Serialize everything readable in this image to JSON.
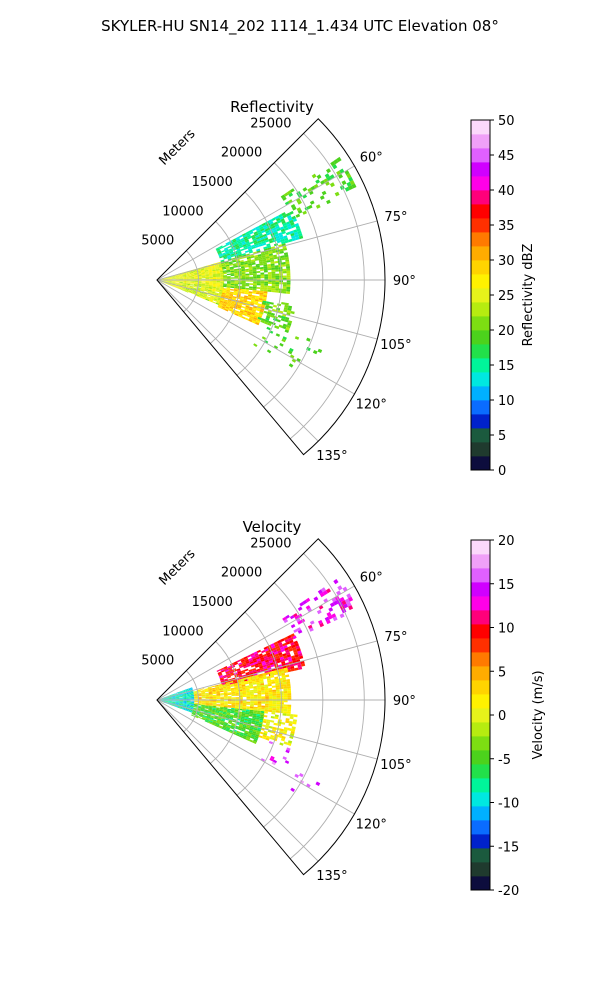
{
  "suptitle": "SKYLER-HU  SN14_202  1114_1.434 UTC Elevation 08°",
  "chart_data": [
    {
      "type": "heatmap",
      "title": "Reflectivity",
      "radial_label": "Meters",
      "r_ticks": [
        5000,
        10000,
        15000,
        20000,
        25000
      ],
      "r_range": [
        0,
        27500
      ],
      "theta_ticks": [
        60,
        75,
        90,
        105,
        120,
        135
      ],
      "theta_tick_labels": [
        "60°",
        "75°",
        "90°",
        "105°",
        "120°",
        "135°"
      ],
      "theta_range": [
        45,
        140
      ],
      "grid": true,
      "colorbar": {
        "label": "Reflectivity dBZ",
        "range": [
          0,
          50
        ],
        "ticks": [
          0,
          5,
          10,
          15,
          20,
          25,
          30,
          35,
          40,
          45,
          50
        ],
        "colors": [
          "#0d0d3d",
          "#1f3a2e",
          "#1b5a3e",
          "#0022cc",
          "#0a6cff",
          "#00b0ff",
          "#00e8e0",
          "#00f59a",
          "#22e04a",
          "#4cd21c",
          "#7dde12",
          "#b6ec10",
          "#e6f31a",
          "#fff200",
          "#ffd400",
          "#ffac00",
          "#ff7a00",
          "#ff3000",
          "#ff0000",
          "#ff007a",
          "#ff00e8",
          "#d000ff",
          "#e060ff",
          "#f0a0f8",
          "#fbd8fb"
        ]
      },
      "sectors": [
        {
          "az": [
            62,
            74
          ],
          "r": [
            8000,
            18000
          ],
          "value": 15,
          "density": 0.8
        },
        {
          "az": [
            56,
            66
          ],
          "r": [
            18000,
            26500
          ],
          "value": 19,
          "density": 0.32
        },
        {
          "az": [
            74,
            96
          ],
          "r": [
            0,
            8000
          ],
          "value": 25,
          "density": 0.97
        },
        {
          "az": [
            74,
            96
          ],
          "r": [
            8000,
            16000
          ],
          "value": 21,
          "density": 0.85
        },
        {
          "az": [
            96,
            112
          ],
          "r": [
            0,
            8000
          ],
          "value": 24,
          "density": 0.95
        },
        {
          "az": [
            96,
            114
          ],
          "r": [
            8000,
            13000
          ],
          "value": 29,
          "density": 0.9
        },
        {
          "az": [
            100,
            112
          ],
          "r": [
            13000,
            17000
          ],
          "value": 20,
          "density": 0.55
        },
        {
          "az": [
            110,
            124
          ],
          "r": [
            14000,
            22000
          ],
          "value": 19,
          "density": 0.1
        }
      ]
    },
    {
      "type": "heatmap",
      "title": "Velocity",
      "radial_label": "Meters",
      "r_ticks": [
        5000,
        10000,
        15000,
        20000,
        25000
      ],
      "r_range": [
        0,
        27500
      ],
      "theta_ticks": [
        60,
        75,
        90,
        105,
        120,
        135
      ],
      "theta_tick_labels": [
        "60°",
        "75°",
        "90°",
        "105°",
        "120°",
        "135°"
      ],
      "theta_range": [
        45,
        140
      ],
      "grid": true,
      "colorbar": {
        "label": "Velocity (m/s)",
        "range": [
          -20,
          20
        ],
        "ticks": [
          -20,
          -15,
          -10,
          -5,
          0,
          5,
          10,
          15,
          20
        ],
        "colors": [
          "#0d0d3d",
          "#1f3a2e",
          "#1b5a3e",
          "#0022cc",
          "#0a6cff",
          "#00b0ff",
          "#00e8e0",
          "#00f59a",
          "#22e04a",
          "#4cd21c",
          "#7dde12",
          "#b6ec10",
          "#e6f31a",
          "#fff200",
          "#ffd400",
          "#ffac00",
          "#ff7a00",
          "#ff3000",
          "#ff0000",
          "#ff007a",
          "#ff00e8",
          "#d000ff",
          "#e060ff",
          "#f0a0f8",
          "#fbd8fb"
        ]
      },
      "sectors": [
        {
          "az": [
            70,
            110
          ],
          "r": [
            0,
            4500
          ],
          "value": -9,
          "density": 0.97
        },
        {
          "az": [
            96,
            114
          ],
          "r": [
            4500,
            13000
          ],
          "value": -5,
          "density": 0.92
        },
        {
          "az": [
            64,
            78
          ],
          "r": [
            8000,
            18000
          ],
          "value": 10,
          "density": 0.85
        },
        {
          "az": [
            56,
            66
          ],
          "r": [
            18000,
            26500
          ],
          "value": 14,
          "density": 0.35
        },
        {
          "az": [
            76,
            96
          ],
          "r": [
            4500,
            16000
          ],
          "value": 2,
          "density": 0.88
        },
        {
          "az": [
            96,
            110
          ],
          "r": [
            13000,
            17000
          ],
          "value": 1,
          "density": 0.5
        },
        {
          "az": [
            110,
            124
          ],
          "r": [
            14000,
            22000
          ],
          "value": 15,
          "density": 0.08
        }
      ]
    }
  ]
}
